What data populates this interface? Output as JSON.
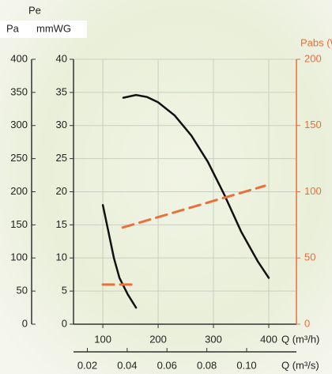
{
  "chart_data": {
    "type": "line",
    "y_name": "Pe",
    "y_label": "mmWG",
    "ylim": [
      0,
      40
    ],
    "yticks": [
      0,
      5,
      10,
      15,
      20,
      25,
      30,
      35,
      40
    ],
    "ya_label": "Pa",
    "yalim": [
      0,
      400
    ],
    "yaticks": [
      0,
      50,
      100,
      150,
      200,
      250,
      300,
      350,
      400
    ],
    "y2_label": "Pabs (W)",
    "y2lim": [
      0,
      200
    ],
    "y2ticks": [
      0,
      50,
      100,
      150,
      200
    ],
    "y2color": "#e8703a",
    "x_label": "Q (m³/h)",
    "xlim": [
      47,
      450
    ],
    "xticks": [
      100,
      200,
      300,
      400
    ],
    "x2_label": "Q (m³/s)",
    "x2lim": [
      0.013056,
      0.125
    ],
    "x2ticks": [
      0.02,
      0.04,
      0.06,
      0.08,
      {
        "value": 0.1,
        "label": "0.10"
      }
    ],
    "grid": true,
    "series": [
      {
        "color": "#111111",
        "axis": "y",
        "dashed": false,
        "x": [
          137,
          160,
          180,
          200,
          230,
          260,
          290,
          320,
          350,
          380,
          400
        ],
        "values": [
          34.2,
          34.6,
          34.3,
          33.5,
          31.5,
          28.5,
          24.5,
          19.5,
          14,
          9.5,
          7
        ]
      },
      {
        "color": "#111111",
        "axis": "y",
        "dashed": false,
        "x": [
          100,
          110,
          120,
          130,
          145,
          160
        ],
        "values": [
          18,
          14,
          10,
          7,
          4.5,
          2.5
        ]
      },
      {
        "color": "#e8703a",
        "axis": "y2",
        "dashed": true,
        "x": [
          136,
          393
        ],
        "values": [
          73,
          104.5
        ]
      },
      {
        "color": "#e8703a",
        "axis": "y2",
        "dashed": true,
        "x": [
          100,
          157
        ],
        "values": [
          29.9,
          29.9
        ]
      }
    ]
  }
}
